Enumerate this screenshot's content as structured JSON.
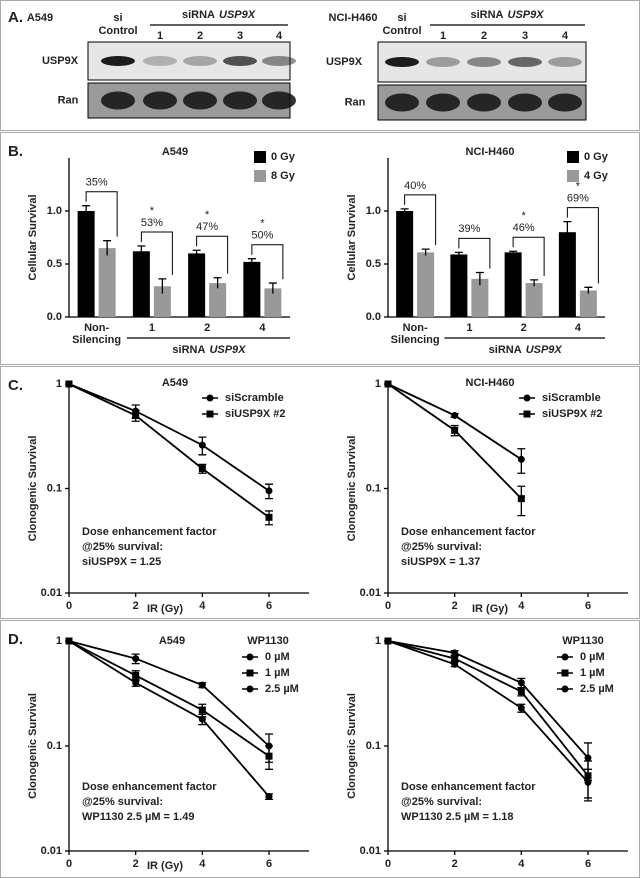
{
  "panel_labels": [
    "A.",
    "B.",
    "C.",
    "D."
  ],
  "blots": [
    {
      "cell_line": "A549",
      "control": [
        "si",
        "Control"
      ],
      "group_prefix": "siRNA",
      "group_gene": "USP9X",
      "lanes": [
        "1",
        "2",
        "3",
        "4"
      ],
      "rows": [
        "USP9X",
        "Ran"
      ]
    },
    {
      "cell_line": "NCI-H460",
      "control": [
        "si",
        "Control"
      ],
      "group_prefix": "siRNA",
      "group_gene": "USP9X",
      "lanes": [
        "1",
        "2",
        "3",
        "4"
      ],
      "rows": [
        "USP9X",
        "Ran"
      ]
    }
  ],
  "chart_data": [
    {
      "type": "bar",
      "title": "A549",
      "ylabel": "Cellular Survival",
      "categories": [
        "Non-Silencing",
        "1",
        "2",
        "4"
      ],
      "group_prefix": "siRNA",
      "group_gene": "USP9X",
      "series": [
        {
          "name": "0 Gy",
          "color": "#000000",
          "values": [
            1.0,
            0.62,
            0.6,
            0.52
          ],
          "errors": [
            0.05,
            0.05,
            0.03,
            0.03
          ]
        },
        {
          "name": "8 Gy",
          "color": "#999999",
          "values": [
            0.65,
            0.29,
            0.32,
            0.27
          ],
          "errors": [
            0.07,
            0.07,
            0.05,
            0.05
          ]
        }
      ],
      "annotations": [
        {
          "text": "35%"
        },
        {
          "text": "53%",
          "mark": "*"
        },
        {
          "text": "47%",
          "mark": "*"
        },
        {
          "text": "50%",
          "mark": "*"
        }
      ],
      "ylim": [
        0,
        1.5
      ],
      "yticks": [
        {
          "value": 0,
          "label": "0.0"
        },
        {
          "value": 0.5,
          "label": "0.5"
        },
        {
          "value": 1,
          "label": "1.0"
        }
      ],
      "legend": "upper right"
    },
    {
      "type": "bar",
      "title": "NCI-H460",
      "ylabel": "Cellular Survival",
      "categories": [
        "Non-Silencing",
        "1",
        "2",
        "4"
      ],
      "group_prefix": "siRNA",
      "group_gene": "USP9X",
      "series": [
        {
          "name": "0 Gy",
          "color": "#000000",
          "values": [
            1.0,
            0.59,
            0.61,
            0.8
          ],
          "errors": [
            0.02,
            0.02,
            0.01,
            0.1
          ]
        },
        {
          "name": "4 Gy",
          "color": "#999999",
          "values": [
            0.61,
            0.36,
            0.32,
            0.25
          ],
          "errors": [
            0.03,
            0.06,
            0.03,
            0.03
          ]
        }
      ],
      "annotations": [
        {
          "text": "40%"
        },
        {
          "text": "39%"
        },
        {
          "text": "46%",
          "mark": "*"
        },
        {
          "text": "69%",
          "mark": "*"
        }
      ],
      "ylim": [
        0,
        1.5
      ],
      "yticks": [
        {
          "value": 0,
          "label": "0.0"
        },
        {
          "value": 0.5,
          "label": "0.5"
        },
        {
          "value": 1,
          "label": "1.0"
        }
      ],
      "legend": "upper right"
    },
    {
      "type": "line",
      "title": "A549",
      "ylabel": "Clonogenic Survival",
      "xlabel": "IR (Gy)",
      "log_y": true,
      "x": [
        0,
        2,
        4,
        6
      ],
      "series": [
        {
          "name": "siScramble",
          "color": "#000000",
          "marker": "circle",
          "values": [
            1,
            0.55,
            0.26,
            0.095
          ],
          "errors": [
            null,
            0.08,
            0.05,
            0.015
          ]
        },
        {
          "name": "siUSP9X #2",
          "color": "#000000",
          "marker": "square",
          "values": [
            1,
            0.5,
            0.155,
            0.053
          ],
          "errors": [
            null,
            0.06,
            0.015,
            0.008
          ]
        }
      ],
      "note": [
        "Dose enhancement factor",
        "@25% survival:",
        "siUSP9X = 1.25"
      ],
      "xlim": [
        0,
        7.2
      ],
      "ylim": [
        0.01,
        1
      ],
      "xticks": [
        0,
        2,
        4,
        6
      ],
      "yticks": [
        0.01,
        0.1,
        1
      ],
      "legend": "upper right"
    },
    {
      "type": "line",
      "title": "NCI-H460",
      "ylabel": "Clonogenic Survival",
      "xlabel": "IR (Gy)",
      "log_y": true,
      "x": [
        0,
        2,
        4,
        6
      ],
      "series": [
        {
          "name": "siScramble",
          "color": "#000000",
          "marker": "circle",
          "values": [
            1,
            0.5,
            0.19,
            null
          ],
          "errors": [
            null,
            0.02,
            0.05,
            null
          ]
        },
        {
          "name": "siUSP9X #2",
          "color": "#000000",
          "marker": "square",
          "values": [
            1,
            0.36,
            0.08,
            null
          ],
          "errors": [
            null,
            0.04,
            0.025,
            null
          ]
        }
      ],
      "note": [
        "Dose enhancement factor",
        "@25% survival:",
        "siUSP9X = 1.37"
      ],
      "xlim": [
        0,
        7.2
      ],
      "ylim": [
        0.01,
        1
      ],
      "xticks": [
        0,
        2,
        4,
        6
      ],
      "yticks": [
        0.01,
        0.1,
        1
      ],
      "legend": "upper right"
    },
    {
      "type": "line",
      "title": "A549",
      "ylabel": "Clonogenic Survival",
      "xlabel": "IR (Gy)",
      "log_y": true,
      "legend_title": "WP1130",
      "x": [
        0,
        2,
        4,
        6
      ],
      "series": [
        {
          "name": "0 µM",
          "color": "#000000",
          "marker": "circle",
          "values": [
            1,
            0.68,
            0.38,
            0.1
          ],
          "errors": [
            null,
            0.07,
            0.02,
            0.03
          ]
        },
        {
          "name": "1 µM",
          "color": "#000000",
          "marker": "square",
          "values": [
            1,
            0.47,
            0.22,
            0.08
          ],
          "errors": [
            null,
            0.05,
            0.03,
            0.02
          ]
        },
        {
          "name": "2.5 µM",
          "color": "#000000",
          "marker": "circle",
          "values": [
            1,
            0.4,
            0.18,
            0.033
          ],
          "errors": [
            null,
            0.03,
            0.02,
            0.002
          ]
        }
      ],
      "note": [
        "Dose enhancement factor",
        "@25% survival:",
        "WP1130 2.5 µM = 1.49"
      ],
      "xlim": [
        0,
        7.2
      ],
      "ylim": [
        0.01,
        1
      ],
      "xticks": [
        0,
        2,
        4,
        6
      ],
      "yticks": [
        0.01,
        0.1,
        1
      ],
      "legend": "upper right"
    },
    {
      "type": "line",
      "ylabel": "Clonogenic Survival",
      "log_y": true,
      "legend_title": "WP1130",
      "x": [
        0,
        2,
        4,
        6
      ],
      "series": [
        {
          "name": "0 µM",
          "color": "#000000",
          "marker": "circle",
          "values": [
            1,
            0.77,
            0.4,
            0.077
          ],
          "errors": [
            null,
            0.04,
            0.04,
            0.03
          ]
        },
        {
          "name": "1 µM",
          "color": "#000000",
          "marker": "square",
          "values": [
            1,
            0.68,
            0.33,
            0.052
          ],
          "errors": [
            null,
            0.04,
            0.03,
            0.02
          ]
        },
        {
          "name": "2.5 µM",
          "color": "#000000",
          "marker": "circle",
          "values": [
            1,
            0.6,
            0.23,
            0.045
          ],
          "errors": [
            null,
            0.03,
            0.02,
            0.015
          ]
        }
      ],
      "note": [
        "Dose enhancement factor",
        "@25% survival:",
        "WP1130 2.5 µM = 1.18"
      ],
      "xlim": [
        0,
        7.2
      ],
      "ylim": [
        0.01,
        1
      ],
      "xticks": [
        0,
        2,
        4,
        6
      ],
      "yticks": [
        0.01,
        0.1,
        1
      ],
      "legend": "upper right"
    }
  ]
}
